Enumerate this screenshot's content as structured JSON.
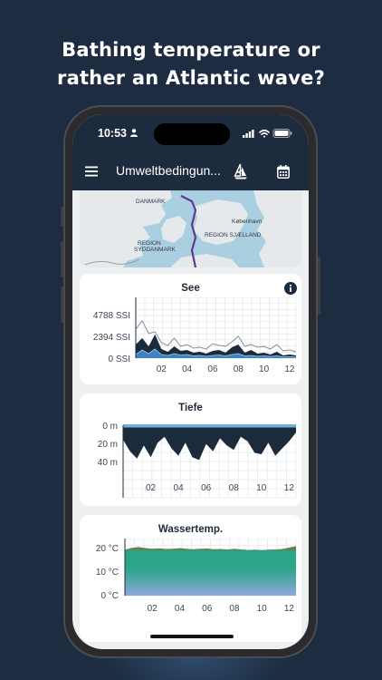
{
  "headline": {
    "line1": "Bathing temperature or",
    "line2": "rather an Atlantic wave?"
  },
  "status_bar": {
    "time": "10:53"
  },
  "app_bar": {
    "title": "Umweltbedingun...",
    "icons": [
      "menu-icon",
      "ship-icon",
      "calendar-icon"
    ]
  },
  "map": {
    "labels": {
      "danmark": "DANMARK",
      "kobenhavn": "København",
      "sjaelland": "REGION SJÆLLAND",
      "syddanmark_1": "REGION",
      "syddanmark_2": "SYDDANMARK"
    },
    "colors": {
      "land": "#e4e8ea",
      "water": "#a9cfe0",
      "route": "#5b3c8c"
    }
  },
  "x_ticks": [
    "02",
    "04",
    "06",
    "08",
    "10",
    "12"
  ],
  "charts": {
    "see": {
      "title": "See",
      "y_ticks": [
        "4788 SSI",
        "2394 SSI",
        "0 SSI"
      ]
    },
    "tiefe": {
      "title": "Tiefe",
      "y_ticks": [
        "0 m",
        "20 m",
        "40 m"
      ]
    },
    "wassertemp": {
      "title": "Wassertemp.",
      "y_ticks": [
        "20 °C",
        "10 °C",
        "0 °C"
      ]
    }
  },
  "chart_data": [
    {
      "type": "area",
      "title": "See",
      "x": [
        0,
        0.5,
        1,
        1.5,
        2,
        2.5,
        3,
        3.5,
        4,
        4.5,
        5,
        5.5,
        6,
        6.5,
        7,
        7.5,
        8,
        8.5,
        9,
        9.5,
        10,
        10.5,
        11,
        11.5,
        12,
        12.5
      ],
      "series": [
        {
          "values": [
            3200,
            4100,
            2700,
            2900,
            1700,
            1400,
            2200,
            1300,
            1500,
            1100,
            1200,
            1000,
            1600,
            1400,
            1300,
            1800,
            2400,
            1300,
            1500,
            1200,
            1300,
            1000,
            1500,
            800,
            900,
            700
          ]
        },
        {
          "values": [
            1500,
            2200,
            1300,
            2600,
            1000,
            700,
            1300,
            800,
            900,
            600,
            700,
            500,
            800,
            900,
            600,
            1200,
            1500,
            600,
            900,
            500,
            600,
            400,
            700,
            300,
            400,
            300
          ]
        },
        {
          "values": [
            400,
            900,
            500,
            1000,
            400,
            300,
            500,
            350,
            400,
            250,
            300,
            200,
            300,
            350,
            250,
            400,
            500,
            250,
            300,
            200,
            250,
            180,
            250,
            150,
            150,
            120
          ]
        }
      ],
      "ylim": [
        0,
        4788
      ],
      "xlim": [
        0,
        12.5
      ],
      "colors": [
        "#8a8f96",
        "#1b2b3c",
        "#3d83c2"
      ]
    },
    {
      "type": "area",
      "title": "Tiefe",
      "x": [
        0,
        0.5,
        1,
        1.5,
        2,
        2.5,
        3,
        3.5,
        4,
        4.5,
        5,
        5.5,
        6,
        6.5,
        7,
        7.5,
        8,
        8.5,
        9,
        9.5,
        10,
        10.5,
        11,
        11.5,
        12,
        12.5
      ],
      "series": [
        {
          "values": [
            10,
            18,
            23,
            14,
            22,
            12,
            8,
            16,
            21,
            12,
            22,
            24,
            13,
            18,
            9,
            14,
            17,
            8,
            11,
            19,
            20,
            12,
            21,
            16,
            11,
            5
          ]
        }
      ],
      "ylim": [
        0,
        50
      ],
      "xlim": [
        0,
        12.5
      ],
      "colors": [
        "#1b2b3c",
        "#6fb1d9"
      ]
    },
    {
      "type": "area",
      "title": "Wassertemp.",
      "x": [
        0,
        0.5,
        1,
        1.5,
        2,
        2.5,
        3,
        3.5,
        4,
        4.5,
        5,
        5.5,
        6,
        6.5,
        7,
        7.5,
        8,
        8.5,
        9,
        9.5,
        10,
        10.5,
        11,
        11.5,
        12,
        12.5
      ],
      "series": [
        {
          "values": [
            19.5,
            20.3,
            20.6,
            20.2,
            19.9,
            20.1,
            19.8,
            19.9,
            20.2,
            19.9,
            19.7,
            19.9,
            20.0,
            19.7,
            19.8,
            19.6,
            19.9,
            19.6,
            19.4,
            19.5,
            19.3,
            19.5,
            19.6,
            19.8,
            20.4,
            21.0
          ]
        }
      ],
      "ylim": [
        0,
        22
      ],
      "xlim": [
        0,
        12.5
      ],
      "colors": [
        "#8fa7dc",
        "#2aa588",
        "#8a6b2d"
      ]
    }
  ]
}
